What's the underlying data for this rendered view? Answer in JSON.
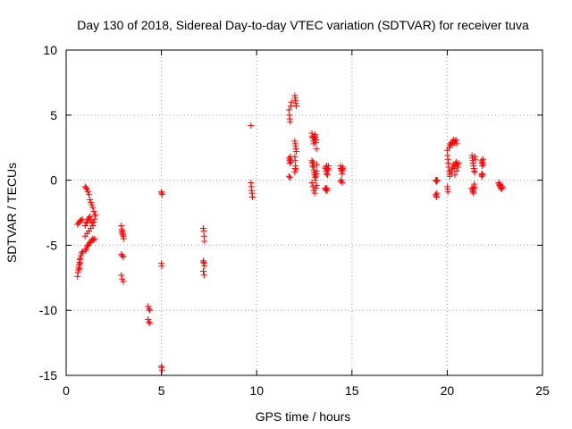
{
  "chart_data": {
    "type": "scatter",
    "title": "Day 130 of 2018, Sidereal Day-to-day VTEC variation (SDTVAR) for receiver tuva",
    "xlabel": "GPS time / hours",
    "ylabel": "SDTVAR / TECUs",
    "xlim": [
      0,
      25
    ],
    "ylim": [
      -15,
      10
    ],
    "xticks": [
      0,
      5,
      10,
      15,
      20,
      25
    ],
    "yticks": [
      -15,
      -10,
      -5,
      0,
      5,
      10
    ],
    "xtick_labels": [
      "0",
      "5",
      "10",
      "15",
      "20",
      "25"
    ],
    "ytick_labels": [
      "-15",
      "-10",
      "-5",
      "0",
      "5",
      "10"
    ],
    "grid": true,
    "marker": "+",
    "color": "#ff0000",
    "series": [
      {
        "name": "SDTVAR",
        "points": [
          [
            0.6,
            -3.4
          ],
          [
            0.65,
            -3.3
          ],
          [
            0.7,
            -3.2
          ],
          [
            0.75,
            -3.1
          ],
          [
            0.8,
            -3.1
          ],
          [
            0.85,
            -3.0
          ],
          [
            0.6,
            -7.4
          ],
          [
            0.62,
            -7.1
          ],
          [
            0.64,
            -6.9
          ],
          [
            0.66,
            -6.7
          ],
          [
            0.68,
            -6.5
          ],
          [
            0.7,
            -6.3
          ],
          [
            0.72,
            -6.1
          ],
          [
            0.74,
            -6.0
          ],
          [
            0.78,
            -5.8
          ],
          [
            0.82,
            -5.6
          ],
          [
            0.86,
            -5.5
          ],
          [
            0.7,
            -6.8
          ],
          [
            0.74,
            -6.4
          ],
          [
            1.0,
            -0.5
          ],
          [
            1.05,
            -0.6
          ],
          [
            1.1,
            -0.7
          ],
          [
            1.15,
            -0.9
          ],
          [
            1.2,
            -1.1
          ],
          [
            1.25,
            -1.5
          ],
          [
            1.3,
            -1.7
          ],
          [
            1.35,
            -1.9
          ],
          [
            1.4,
            -2.1
          ],
          [
            1.45,
            -2.4
          ],
          [
            1.5,
            -2.7
          ],
          [
            1.0,
            -3.5
          ],
          [
            1.05,
            -3.3
          ],
          [
            1.1,
            -3.2
          ],
          [
            1.15,
            -3.0
          ],
          [
            1.2,
            -2.9
          ],
          [
            1.25,
            -2.8
          ],
          [
            1.3,
            -3.1
          ],
          [
            1.35,
            -3.3
          ],
          [
            1.4,
            -3.5
          ],
          [
            1.45,
            -3.2
          ],
          [
            1.5,
            -3.0
          ],
          [
            1.55,
            -2.7
          ],
          [
            1.0,
            -5.4
          ],
          [
            1.05,
            -5.3
          ],
          [
            1.1,
            -5.1
          ],
          [
            1.15,
            -5.0
          ],
          [
            1.2,
            -4.9
          ],
          [
            1.25,
            -4.8
          ],
          [
            1.3,
            -4.7
          ],
          [
            1.35,
            -4.6
          ],
          [
            1.4,
            -4.5
          ],
          [
            1.45,
            -4.6
          ],
          [
            1.5,
            -4.5
          ],
          [
            1.0,
            -4.3
          ],
          [
            1.1,
            -4.1
          ],
          [
            1.2,
            -3.9
          ],
          [
            1.3,
            -3.7
          ],
          [
            2.9,
            -3.5
          ],
          [
            2.92,
            -3.8
          ],
          [
            2.94,
            -4.0
          ],
          [
            2.96,
            -4.1
          ],
          [
            2.98,
            -4.2
          ],
          [
            3.0,
            -4.3
          ],
          [
            3.02,
            -4.5
          ],
          [
            2.95,
            -3.9
          ],
          [
            2.9,
            -5.7
          ],
          [
            2.95,
            -5.8
          ],
          [
            3.0,
            -5.9
          ],
          [
            2.9,
            -7.3
          ],
          [
            2.95,
            -7.6
          ],
          [
            3.0,
            -7.8
          ],
          [
            4.3,
            -9.7
          ],
          [
            4.35,
            -9.9
          ],
          [
            4.4,
            -10.0
          ],
          [
            4.3,
            -10.7
          ],
          [
            4.35,
            -10.9
          ],
          [
            4.4,
            -11.0
          ],
          [
            5.0,
            -0.9
          ],
          [
            5.02,
            -1.0
          ],
          [
            5.04,
            -1.1
          ],
          [
            5.0,
            -6.4
          ],
          [
            5.02,
            -6.6
          ],
          [
            5.0,
            -14.3
          ],
          [
            5.02,
            -14.4
          ],
          [
            5.04,
            -14.6
          ],
          [
            7.2,
            -3.7
          ],
          [
            7.22,
            -3.9
          ],
          [
            7.24,
            -4.3
          ],
          [
            7.26,
            -4.7
          ],
          [
            7.2,
            -6.2
          ],
          [
            7.22,
            -6.3
          ],
          [
            7.24,
            -6.4
          ],
          [
            7.26,
            -6.6
          ],
          [
            7.2,
            -7.0
          ],
          [
            7.25,
            -7.3
          ],
          [
            9.7,
            4.2
          ],
          [
            9.7,
            -0.2
          ],
          [
            9.72,
            -0.5
          ],
          [
            9.74,
            -0.8
          ],
          [
            9.76,
            -1.0
          ],
          [
            9.78,
            -1.3
          ],
          [
            11.7,
            5.4
          ],
          [
            11.72,
            5.0
          ],
          [
            11.74,
            4.7
          ],
          [
            11.76,
            4.5
          ],
          [
            11.8,
            5.7
          ],
          [
            11.82,
            6.0
          ],
          [
            12.0,
            6.5
          ],
          [
            12.02,
            6.3
          ],
          [
            12.04,
            6.1
          ],
          [
            12.06,
            5.9
          ],
          [
            12.08,
            5.7
          ],
          [
            11.7,
            1.7
          ],
          [
            11.72,
            1.5
          ],
          [
            11.74,
            1.3
          ],
          [
            11.76,
            1.6
          ],
          [
            11.78,
            1.8
          ],
          [
            11.8,
            1.4
          ],
          [
            11.7,
            0.3
          ],
          [
            11.75,
            0.2
          ],
          [
            12.0,
            3.0
          ],
          [
            12.02,
            2.8
          ],
          [
            12.04,
            2.6
          ],
          [
            12.06,
            2.4
          ],
          [
            12.08,
            2.2
          ],
          [
            12.0,
            1.8
          ],
          [
            12.02,
            1.5
          ],
          [
            12.04,
            1.1
          ],
          [
            12.06,
            0.8
          ],
          [
            12.0,
            0.6
          ],
          [
            12.02,
            0.9
          ],
          [
            12.9,
            3.6
          ],
          [
            12.92,
            3.4
          ],
          [
            12.94,
            3.3
          ],
          [
            12.96,
            3.2
          ],
          [
            12.98,
            3.0
          ],
          [
            13.0,
            2.8
          ],
          [
            13.02,
            3.2
          ],
          [
            13.04,
            3.4
          ],
          [
            13.06,
            3.5
          ],
          [
            13.08,
            3.3
          ],
          [
            13.1,
            2.9
          ],
          [
            13.12,
            3.1
          ],
          [
            13.14,
            2.4
          ],
          [
            12.9,
            1.5
          ],
          [
            12.92,
            1.3
          ],
          [
            12.94,
            1.1
          ],
          [
            12.96,
            1.4
          ],
          [
            12.98,
            1.0
          ],
          [
            13.0,
            0.8
          ],
          [
            13.02,
            0.6
          ],
          [
            13.04,
            0.4
          ],
          [
            13.06,
            0.2
          ],
          [
            13.08,
            0.0
          ],
          [
            13.1,
            0.3
          ],
          [
            13.12,
            0.5
          ],
          [
            13.14,
            0.7
          ],
          [
            13.16,
            1.2
          ],
          [
            12.9,
            -0.2
          ],
          [
            12.95,
            -0.5
          ],
          [
            13.0,
            -0.8
          ],
          [
            13.05,
            -1.0
          ],
          [
            13.1,
            -0.6
          ],
          [
            13.15,
            -0.4
          ],
          [
            13.6,
            1.0
          ],
          [
            13.62,
            0.9
          ],
          [
            13.64,
            0.7
          ],
          [
            13.66,
            0.5
          ],
          [
            13.68,
            1.1
          ],
          [
            13.7,
            0.8
          ],
          [
            13.72,
            0.4
          ],
          [
            13.74,
            0.9
          ],
          [
            13.76,
            1.1
          ],
          [
            13.78,
            0.8
          ],
          [
            13.6,
            -0.6
          ],
          [
            13.62,
            -0.7
          ],
          [
            13.64,
            -0.8
          ],
          [
            13.66,
            -0.7
          ],
          [
            13.68,
            -0.6
          ],
          [
            13.7,
            -0.8
          ],
          [
            14.4,
            1.1
          ],
          [
            14.42,
            0.9
          ],
          [
            14.44,
            0.8
          ],
          [
            14.46,
            0.7
          ],
          [
            14.48,
            0.5
          ],
          [
            14.5,
            0.9
          ],
          [
            14.52,
            1.0
          ],
          [
            14.54,
            0.8
          ],
          [
            14.4,
            -0.1
          ],
          [
            14.45,
            0.0
          ],
          [
            14.5,
            -0.2
          ],
          [
            19.4,
            0.0
          ],
          [
            19.42,
            -0.1
          ],
          [
            19.44,
            0.0
          ],
          [
            19.46,
            -0.1
          ],
          [
            19.48,
            0.0
          ],
          [
            19.4,
            -1.1
          ],
          [
            19.42,
            -1.2
          ],
          [
            19.44,
            -1.3
          ],
          [
            19.46,
            -1.0
          ],
          [
            20.0,
            2.3
          ],
          [
            20.02,
            1.9
          ],
          [
            20.04,
            1.6
          ],
          [
            20.06,
            1.3
          ],
          [
            20.08,
            1.0
          ],
          [
            20.1,
            0.7
          ],
          [
            20.12,
            0.5
          ],
          [
            20.14,
            0.3
          ],
          [
            20.0,
            -0.5
          ],
          [
            20.02,
            -0.7
          ],
          [
            20.04,
            -0.9
          ],
          [
            20.1,
            2.5
          ],
          [
            20.14,
            2.7
          ],
          [
            20.18,
            2.8
          ],
          [
            20.22,
            2.9
          ],
          [
            20.26,
            2.7
          ],
          [
            20.3,
            3.0
          ],
          [
            20.34,
            3.1
          ],
          [
            20.38,
            2.9
          ],
          [
            20.42,
            3.0
          ],
          [
            20.46,
            3.1
          ],
          [
            20.5,
            2.8
          ],
          [
            20.2,
            0.8
          ],
          [
            20.24,
            0.6
          ],
          [
            20.28,
            1.0
          ],
          [
            20.32,
            1.2
          ],
          [
            20.36,
            0.9
          ],
          [
            20.4,
            1.1
          ],
          [
            20.44,
            1.3
          ],
          [
            20.48,
            1.4
          ],
          [
            20.52,
            1.2
          ],
          [
            20.56,
            1.0
          ],
          [
            20.6,
            1.3
          ],
          [
            20.4,
            0.4
          ],
          [
            20.5,
            0.7
          ],
          [
            21.3,
            1.9
          ],
          [
            21.32,
            1.7
          ],
          [
            21.34,
            1.5
          ],
          [
            21.36,
            1.3
          ],
          [
            21.38,
            1.1
          ],
          [
            21.4,
            0.9
          ],
          [
            21.42,
            0.7
          ],
          [
            21.44,
            0.6
          ],
          [
            21.46,
            1.8
          ],
          [
            21.48,
            1.6
          ],
          [
            21.3,
            -0.6
          ],
          [
            21.32,
            -0.7
          ],
          [
            21.34,
            -0.8
          ],
          [
            21.36,
            -0.9
          ],
          [
            21.38,
            -1.0
          ],
          [
            21.4,
            -0.5
          ],
          [
            21.42,
            -0.3
          ],
          [
            21.44,
            -0.6
          ],
          [
            21.8,
            1.5
          ],
          [
            21.82,
            1.3
          ],
          [
            21.84,
            1.1
          ],
          [
            21.86,
            1.4
          ],
          [
            21.88,
            1.6
          ],
          [
            21.9,
            1.2
          ],
          [
            21.8,
            0.4
          ],
          [
            21.82,
            0.3
          ],
          [
            21.84,
            0.5
          ],
          [
            21.86,
            0.4
          ],
          [
            22.7,
            -0.2
          ],
          [
            22.72,
            -0.3
          ],
          [
            22.74,
            -0.4
          ],
          [
            22.76,
            -0.5
          ],
          [
            22.78,
            -0.3
          ],
          [
            22.8,
            -0.4
          ],
          [
            22.82,
            -0.6
          ],
          [
            22.84,
            -0.7
          ],
          [
            22.86,
            -0.5
          ],
          [
            22.88,
            -0.6
          ],
          [
            22.9,
            -0.5
          ]
        ]
      }
    ]
  }
}
